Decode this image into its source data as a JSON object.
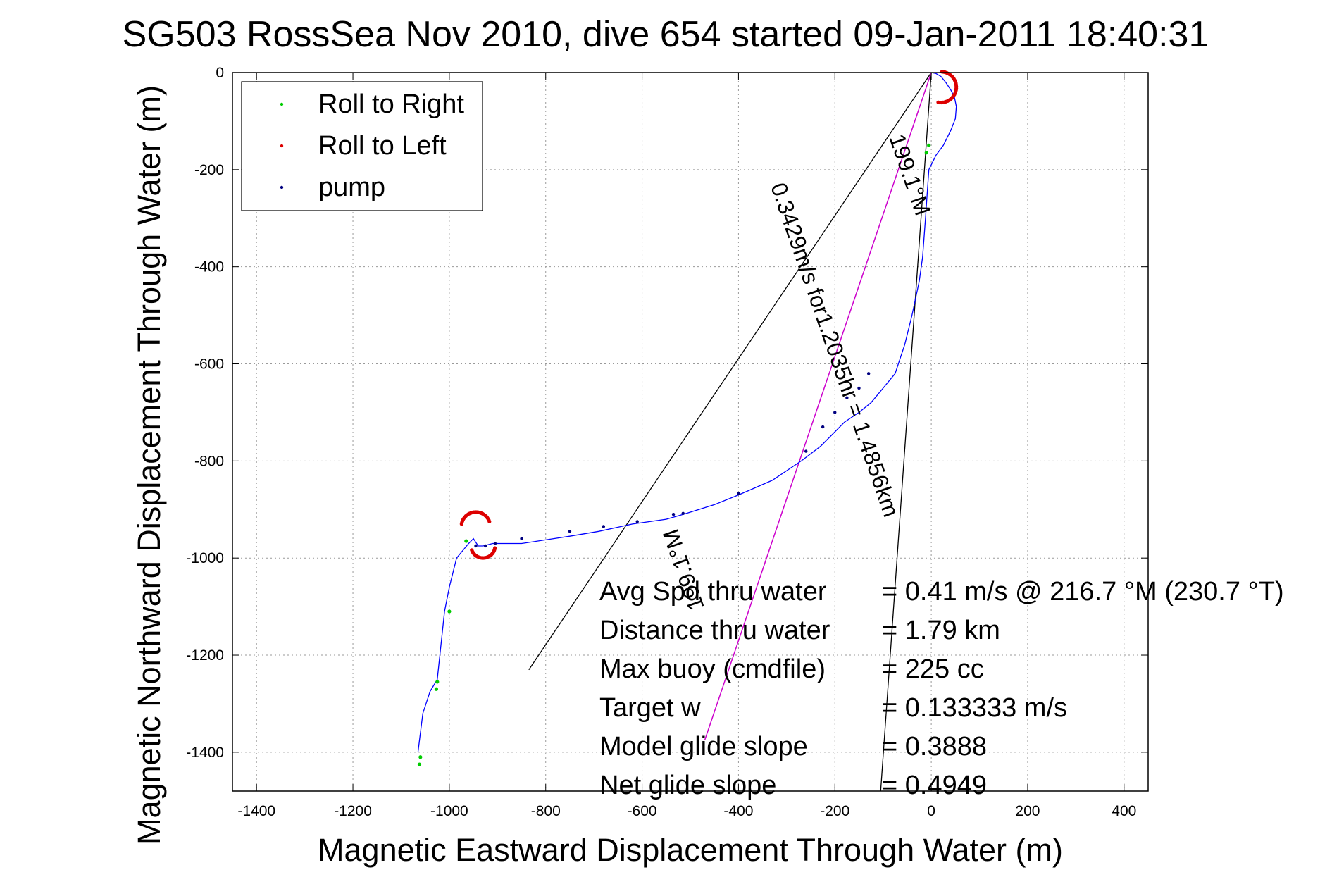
{
  "chart_data": {
    "type": "line",
    "title": "SG503 RossSea Nov 2010, dive 654 started 09-Jan-2011 18:40:31",
    "xlabel": "Magnetic Eastward Displacement Through Water (m)",
    "ylabel": "Magnetic Northward Displacement Through Water (m)",
    "xlim": [
      -1450,
      450
    ],
    "ylim": [
      -1480,
      0
    ],
    "xticks": [
      -1400,
      -1200,
      -1000,
      -800,
      -600,
      -400,
      -200,
      0,
      200,
      400
    ],
    "yticks": [
      0,
      -200,
      -400,
      -600,
      -800,
      -1000,
      -1200,
      -1400
    ],
    "grid": true,
    "legend": {
      "location": "top-left",
      "items": [
        {
          "label": "Roll to Right",
          "color": "#00cc00"
        },
        {
          "label": "Roll to Left",
          "color": "#dd0000"
        },
        {
          "label": "pump",
          "color": "#000080"
        }
      ]
    },
    "track": {
      "name": "",
      "color": "#0000ff",
      "x": [
        0,
        10,
        20,
        30,
        40,
        48,
        52,
        50,
        40,
        25,
        10,
        -5,
        -12,
        -18,
        -25,
        -40,
        -55,
        -75,
        -100,
        -125,
        -150,
        -180,
        -200,
        -230,
        -270,
        -330,
        -400,
        -450,
        -515,
        -550,
        -620,
        -690,
        -750,
        -850,
        -910,
        -930,
        -940,
        -950,
        -960,
        -985,
        -1000,
        -1010,
        -1025,
        -1040,
        -1055,
        -1065
      ],
      "y": [
        0,
        -2,
        -8,
        -20,
        -35,
        -50,
        -70,
        -95,
        -120,
        -150,
        -170,
        -200,
        -300,
        -380,
        -430,
        -500,
        -560,
        -620,
        -650,
        -680,
        -700,
        -720,
        -740,
        -770,
        -800,
        -840,
        -870,
        -890,
        -910,
        -920,
        -930,
        -945,
        -955,
        -970,
        -970,
        -975,
        -975,
        -960,
        -970,
        -1000,
        -1060,
        -1110,
        -1250,
        -1275,
        -1320,
        -1400
      ]
    },
    "pump_markers": {
      "color": "#000080",
      "x": [
        -130,
        -150,
        -175,
        -200,
        -225,
        -260,
        -400,
        -515,
        -535,
        -610,
        -680,
        -750,
        -850,
        -905,
        -925,
        -945
      ],
      "y": [
        -620,
        -650,
        -670,
        -700,
        -730,
        -780,
        -867,
        -908,
        -910,
        -925,
        -935,
        -945,
        -960,
        -970,
        -975,
        -975
      ]
    },
    "roll_right_markers": {
      "color": "#00cc00",
      "x": [
        -5,
        -10,
        -965,
        -1000,
        -1025,
        -1027,
        -1060,
        -1062
      ],
      "y": [
        -150,
        -165,
        -965,
        -1110,
        -1255,
        -1270,
        -1410,
        -1425
      ]
    },
    "roll_left_loops": {
      "color": "#dd0000",
      "loops": [
        {
          "cx": 20,
          "cy": -30,
          "r": 32,
          "start_deg": -100,
          "end_deg": 90
        },
        {
          "cx": -945,
          "cy": -935,
          "r": 30,
          "start_deg": 20,
          "end_deg": 170
        },
        {
          "cx": -930,
          "cy": -975,
          "r": 25,
          "start_deg": 200,
          "end_deg": 350
        }
      ]
    },
    "bearing_lines": {
      "color": "#000000",
      "lines": [
        {
          "x": [
            0,
            -835
          ],
          "y": [
            0,
            -1230
          ]
        },
        {
          "x": [
            0,
            -105
          ],
          "y": [
            0,
            -1480
          ]
        }
      ]
    },
    "avg_line": {
      "color": "#cc00cc",
      "x": [
        0,
        -470
      ],
      "y": [
        0,
        -1375
      ]
    },
    "annotations": {
      "speed_line": "0.3429m/s for1.2035hr = 1.4856km",
      "heading": "199.1°M",
      "heading_lower": "199.1°M"
    },
    "stats": [
      {
        "label": "Avg Spd thru water",
        "value": "=  0.41 m/s @ 216.7 °M (230.7 °T)"
      },
      {
        "label": "Distance thru water",
        "value": "=  1.79 km"
      },
      {
        "label": "Max buoy (cmdfile)",
        "value": "= 225 cc"
      },
      {
        "label": "Target w",
        "value": "= 0.133333 m/s"
      },
      {
        "label": "Model glide slope",
        "value": "= 0.3888"
      },
      {
        "label": "Net glide slope",
        "value": "= 0.4949"
      }
    ]
  }
}
